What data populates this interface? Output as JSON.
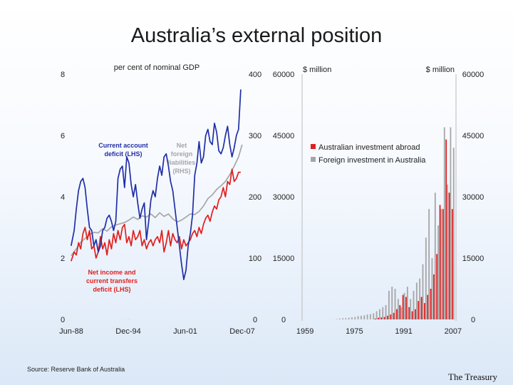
{
  "slide": {
    "title": "Australia’s external position",
    "source": "Source: Reserve Bank of Australia",
    "brand": "The Treasury"
  },
  "colors": {
    "blue": "#1f2fa6",
    "red": "#e01f1f",
    "grey": "#a6a6a6",
    "title_text": "#1a1a1a"
  },
  "chart_data": [
    {
      "type": "line",
      "title": "per cent of nominal GDP",
      "x_tick_labels": [
        "Jun-88",
        "Dec-94",
        "Jun-01",
        "Dec-07"
      ],
      "x_range": [
        1988.42,
        2007.92
      ],
      "y_left": {
        "range": [
          0,
          8
        ],
        "ticks": [
          "0",
          "2",
          "4",
          "6",
          "8"
        ]
      },
      "y_right": {
        "range": [
          0,
          400
        ],
        "ticks": [
          "0",
          "100",
          "200",
          "300",
          "400"
        ]
      },
      "annotations": {
        "current_account": [
          "Current account",
          "deficit (LHS)"
        ],
        "net_liabilities": [
          "Net",
          "foreign",
          "liabilities",
          "(RHS)"
        ],
        "net_income": [
          "Net income and",
          "current transfers",
          "deficit (LHS)"
        ]
      },
      "series": [
        {
          "axis": "left",
          "color": "blue",
          "x": [
            1988.4,
            1988.75,
            1989.0,
            1989.25,
            1989.5,
            1989.75,
            1990.0,
            1990.25,
            1990.5,
            1990.75,
            1991.0,
            1991.25,
            1991.5,
            1991.75,
            1992.0,
            1992.25,
            1992.5,
            1992.75,
            1993.0,
            1993.25,
            1993.5,
            1993.75,
            1994.0,
            1994.25,
            1994.5,
            1994.75,
            1995.0,
            1995.25,
            1995.5,
            1995.75,
            1996.0,
            1996.25,
            1996.5,
            1996.75,
            1997.0,
            1997.25,
            1997.5,
            1997.75,
            1998.0,
            1998.25,
            1998.5,
            1998.75,
            1999.0,
            1999.25,
            1999.5,
            1999.75,
            2000.0,
            2000.25,
            2000.5,
            2000.75,
            2001.0,
            2001.25,
            2001.5,
            2001.75,
            2002.0,
            2002.25,
            2002.5,
            2002.75,
            2003.0,
            2003.25,
            2003.5,
            2003.75,
            2004.0,
            2004.25,
            2004.5,
            2004.75,
            2005.0,
            2005.25,
            2005.5,
            2005.75,
            2006.0,
            2006.25,
            2006.5,
            2006.75,
            2007.0,
            2007.25,
            2007.5,
            2007.75
          ],
          "y": [
            2.4,
            2.9,
            3.6,
            4.2,
            4.5,
            4.6,
            4.3,
            3.6,
            3.0,
            2.9,
            2.4,
            2.6,
            2.2,
            2.4,
            2.9,
            3.0,
            3.3,
            3.4,
            3.2,
            2.9,
            3.2,
            4.6,
            4.9,
            5.0,
            4.3,
            5.3,
            5.1,
            4.4,
            4.0,
            4.4,
            3.8,
            3.3,
            3.6,
            3.8,
            2.6,
            3.2,
            3.9,
            4.2,
            4.0,
            4.6,
            5.0,
            4.7,
            5.3,
            5.4,
            5.0,
            4.5,
            4.2,
            3.6,
            3.0,
            2.4,
            1.8,
            1.3,
            1.6,
            2.4,
            2.8,
            3.4,
            4.7,
            5.1,
            5.8,
            5.1,
            5.3,
            6.0,
            6.2,
            5.8,
            5.7,
            6.4,
            6.1,
            5.5,
            5.4,
            5.6,
            6.0,
            6.3,
            5.7,
            5.3,
            5.6,
            6.0,
            6.2,
            7.5
          ]
        },
        {
          "axis": "left",
          "color": "red",
          "x": [
            1988.4,
            1988.75,
            1989.0,
            1989.25,
            1989.5,
            1989.75,
            1990.0,
            1990.25,
            1990.5,
            1990.75,
            1991.0,
            1991.25,
            1991.5,
            1991.75,
            1992.0,
            1992.25,
            1992.5,
            1992.75,
            1993.0,
            1993.25,
            1993.5,
            1993.75,
            1994.0,
            1994.25,
            1994.5,
            1994.75,
            1995.0,
            1995.25,
            1995.5,
            1995.75,
            1996.0,
            1996.25,
            1996.5,
            1996.75,
            1997.0,
            1997.25,
            1997.5,
            1997.75,
            1998.0,
            1998.25,
            1998.5,
            1998.75,
            1999.0,
            1999.25,
            1999.5,
            1999.75,
            2000.0,
            2000.25,
            2000.5,
            2000.75,
            2001.0,
            2001.25,
            2001.5,
            2001.75,
            2002.0,
            2002.25,
            2002.5,
            2002.75,
            2003.0,
            2003.25,
            2003.5,
            2003.75,
            2004.0,
            2004.25,
            2004.5,
            2004.75,
            2005.0,
            2005.25,
            2005.5,
            2005.75,
            2006.0,
            2006.25,
            2006.5,
            2006.75,
            2007.0,
            2007.25,
            2007.5,
            2007.75
          ],
          "y": [
            1.9,
            2.2,
            2.1,
            2.5,
            2.3,
            2.8,
            3.0,
            2.6,
            2.9,
            2.3,
            2.4,
            2.0,
            2.2,
            2.7,
            2.3,
            2.5,
            2.1,
            2.6,
            2.3,
            2.8,
            2.5,
            2.9,
            2.6,
            3.0,
            3.1,
            2.5,
            2.7,
            2.4,
            2.9,
            2.6,
            2.7,
            2.9,
            2.4,
            2.6,
            2.3,
            2.5,
            2.6,
            2.4,
            2.6,
            2.7,
            2.5,
            2.9,
            2.2,
            2.5,
            2.9,
            2.4,
            2.8,
            2.6,
            2.5,
            2.7,
            2.3,
            2.6,
            2.4,
            2.5,
            2.6,
            2.8,
            2.9,
            2.7,
            3.0,
            2.8,
            3.1,
            3.3,
            3.4,
            3.2,
            3.5,
            3.7,
            3.6,
            3.9,
            4.0,
            4.3,
            4.0,
            4.5,
            4.4,
            4.9,
            4.5,
            4.6,
            4.8,
            4.8
          ]
        },
        {
          "axis": "right",
          "color": "grey",
          "x": [
            1988.4,
            1989.0,
            1989.5,
            1990.0,
            1990.5,
            1991.0,
            1991.5,
            1992.0,
            1992.5,
            1993.0,
            1993.5,
            1994.0,
            1994.5,
            1995.0,
            1995.5,
            1996.0,
            1996.5,
            1997.0,
            1997.5,
            1998.0,
            1998.5,
            1999.0,
            1999.5,
            2000.0,
            2000.5,
            2001.0,
            2001.5,
            2002.0,
            2002.5,
            2003.0,
            2003.5,
            2004.0,
            2004.5,
            2005.0,
            2005.5,
            2006.0,
            2006.5,
            2007.0,
            2007.5,
            2007.9
          ],
          "y": [
            104,
            115,
            126,
            132,
            138,
            142,
            141,
            148,
            144,
            151,
            154,
            156,
            158,
            162,
            167,
            163,
            169,
            167,
            172,
            166,
            174,
            168,
            172,
            164,
            159,
            162,
            167,
            172,
            171,
            176,
            185,
            197,
            203,
            212,
            218,
            225,
            236,
            250,
            265,
            285
          ]
        }
      ]
    },
    {
      "type": "bar",
      "title": "",
      "left_unit": "$ million",
      "right_unit": "$ million",
      "x_tick_labels": [
        "1959",
        "1975",
        "1991",
        "2007"
      ],
      "x_range": [
        1959,
        2007
      ],
      "y_range": [
        0,
        60000
      ],
      "y_left_ticks": [
        "0",
        "15000",
        "30000",
        "45000",
        "60000"
      ],
      "y_right_ticks": [
        "0",
        "15000",
        "30000",
        "45000",
        "60000"
      ],
      "legend": {
        "position": "upper-middle",
        "entries": [
          {
            "name": "Australian investment abroad",
            "color": "red"
          },
          {
            "name": "Foreign investment in Australia",
            "color": "grey"
          }
        ]
      },
      "series": [
        {
          "name": "Australian investment abroad",
          "color": "red",
          "values": [
            0,
            0,
            0,
            0,
            0,
            0,
            0,
            0,
            0,
            0,
            0,
            0,
            0,
            0,
            0,
            0,
            0,
            0,
            0,
            0,
            0,
            0,
            0,
            200,
            400,
            500,
            600,
            900,
            1200,
            1600,
            2500,
            3500,
            6000,
            5500,
            3000,
            2000,
            2500,
            4500,
            5500,
            4000,
            6000,
            7500,
            11000,
            16000,
            28000,
            27000,
            44000,
            31000,
            27000
          ]
        },
        {
          "name": "Foreign investment in Australia",
          "color": "grey",
          "values": [
            0,
            0,
            0,
            0,
            0,
            0,
            0,
            0,
            0,
            0,
            100,
            200,
            300,
            300,
            400,
            500,
            600,
            800,
            900,
            1000,
            1200,
            1300,
            1500,
            2000,
            2500,
            3000,
            3500,
            7000,
            8000,
            7500,
            5000,
            3000,
            6500,
            8000,
            5000,
            7000,
            9000,
            10000,
            13500,
            20000,
            27000,
            15000,
            31000,
            23000,
            27000,
            47000,
            33000,
            47000,
            42000
          ]
        }
      ]
    }
  ]
}
